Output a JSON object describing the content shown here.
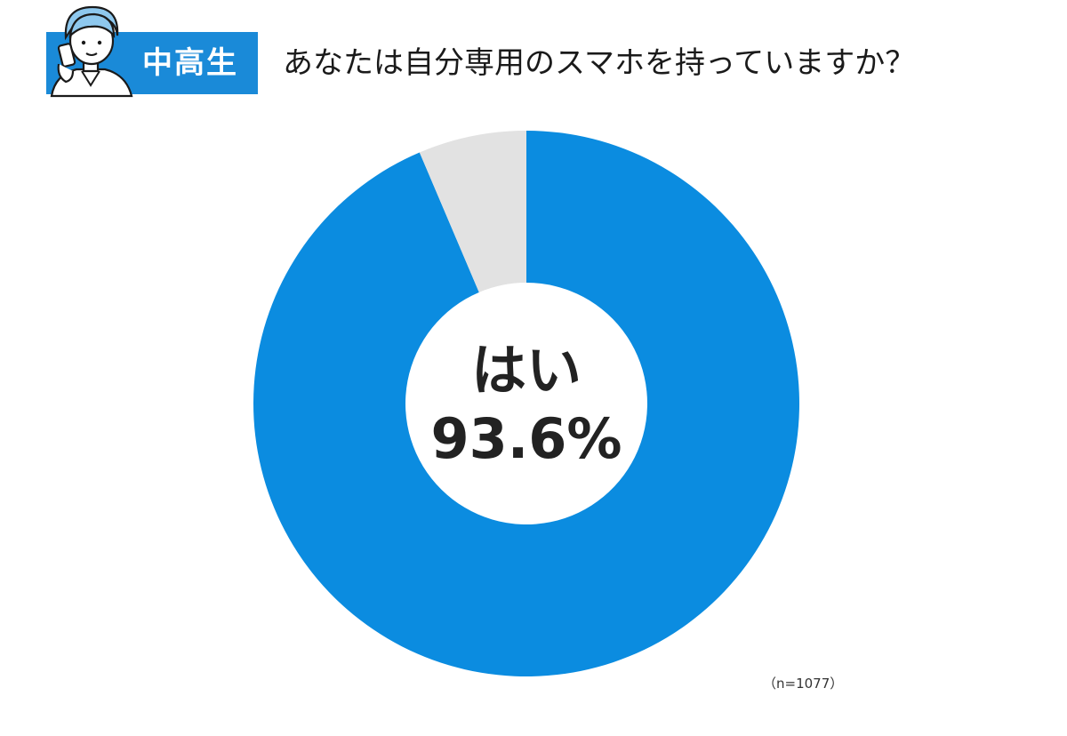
{
  "header": {
    "badge": "中高生",
    "question": "あなたは自分専用のスマホを持っていますか？"
  },
  "colors": {
    "accent": "#0b8ce0",
    "remainder": "#e2e2e2",
    "badge_bg": "#1a8ad8"
  },
  "chart_data": {
    "type": "pie",
    "style": "donut",
    "slices": [
      {
        "label": "はい",
        "value": 93.6,
        "color": "#0b8ce0"
      },
      {
        "label": "",
        "value": 6.4,
        "color": "#e2e2e2"
      }
    ],
    "center_label": "はい",
    "center_value": "93.6%",
    "note": "（n=1077）"
  }
}
